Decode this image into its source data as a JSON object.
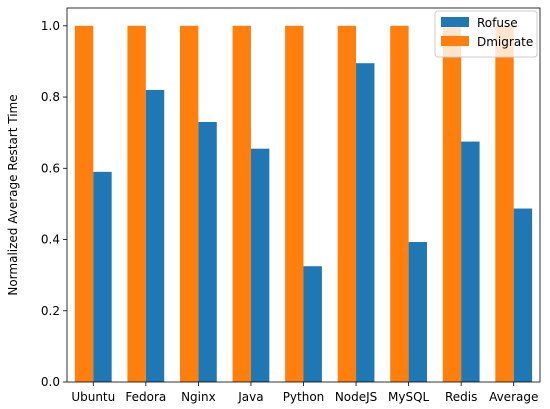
{
  "chart_data": {
    "type": "bar",
    "title": "",
    "xlabel": "",
    "ylabel": "Normalized Average Restart Time",
    "categories": [
      "Ubuntu",
      "Fedora",
      "Nginx",
      "Java",
      "Python",
      "NodeJS",
      "MySQL",
      "Redis",
      "Average"
    ],
    "series": [
      {
        "name": "Rofuse",
        "color": "#1f77b4",
        "values": [
          0.59,
          0.82,
          0.73,
          0.655,
          0.325,
          0.895,
          0.393,
          0.675,
          0.487
        ]
      },
      {
        "name": "Dmigrate",
        "color": "#ff7f0e",
        "values": [
          1.0,
          1.0,
          1.0,
          1.0,
          1.0,
          1.0,
          1.0,
          1.0,
          1.0
        ]
      }
    ],
    "ylim": [
      0.0,
      1.05
    ],
    "yticks": [
      "0.0",
      "0.2",
      "0.4",
      "0.6",
      "0.8",
      "1.0"
    ],
    "grid": false,
    "legend_position": "top-right"
  }
}
